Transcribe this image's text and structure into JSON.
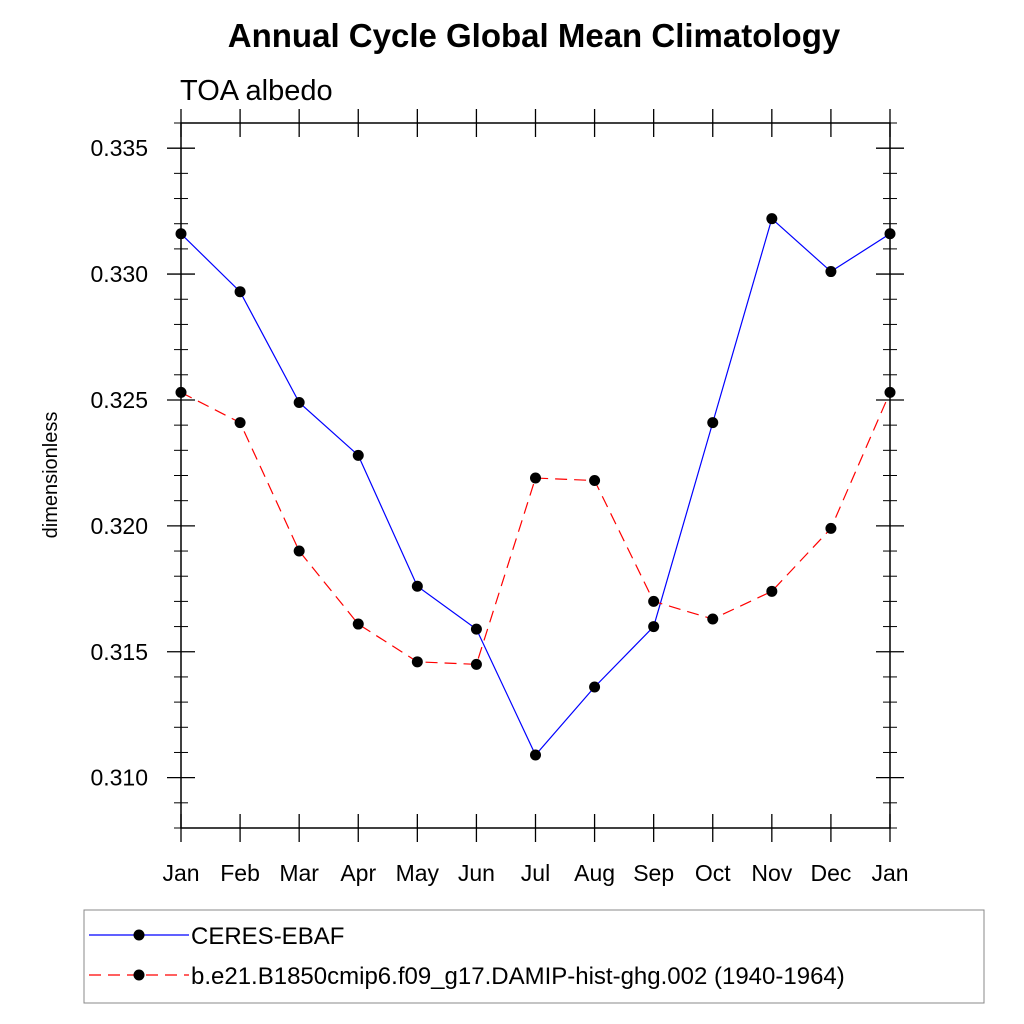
{
  "chart_data": {
    "type": "line",
    "title": "Annual Cycle Global Mean Climatology",
    "subtitle": "TOA albedo",
    "xlabel": "",
    "ylabel": "dimensionless",
    "categories": [
      "Jan",
      "Feb",
      "Mar",
      "Apr",
      "May",
      "Jun",
      "Jul",
      "Aug",
      "Sep",
      "Oct",
      "Nov",
      "Dec",
      "Jan"
    ],
    "ylim": [
      0.308,
      0.336
    ],
    "yticks": [
      0.31,
      0.315,
      0.32,
      0.325,
      0.33,
      0.335
    ],
    "ytick_labels": [
      "0.310",
      "0.315",
      "0.320",
      "0.325",
      "0.330",
      "0.335"
    ],
    "grid": false,
    "legend_position": "bottom",
    "series": [
      {
        "name": "CERES-EBAF",
        "color": "#0000ff",
        "dashed": false,
        "values": [
          0.3316,
          0.3293,
          0.3249,
          0.3228,
          0.3176,
          0.3159,
          0.3109,
          0.3136,
          0.316,
          0.3241,
          0.3322,
          0.3301,
          0.3316
        ]
      },
      {
        "name": "b.e21.B1850cmip6.f09_g17.DAMIP-hist-ghg.002 (1940-1964)",
        "color": "#ff0000",
        "dashed": true,
        "values": [
          0.3253,
          0.3241,
          0.319,
          0.3161,
          0.3146,
          0.3145,
          0.3219,
          0.3218,
          0.317,
          0.3163,
          0.3174,
          0.3199,
          0.3253
        ]
      }
    ]
  }
}
